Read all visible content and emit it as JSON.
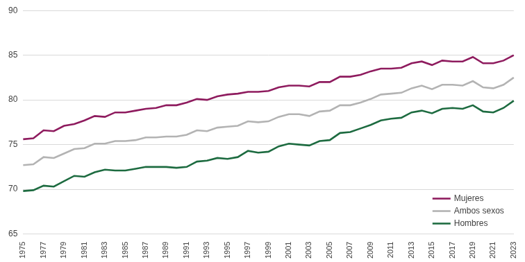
{
  "chart_data": {
    "type": "line",
    "categories": [
      "1975",
      null,
      "1977",
      null,
      "1979",
      null,
      "1981",
      null,
      "1983",
      null,
      "1985",
      null,
      "1987",
      null,
      "1989",
      null,
      "1991",
      null,
      "1993",
      null,
      "1995",
      null,
      "1997",
      null,
      "1999",
      null,
      "2001",
      null,
      "2003",
      null,
      "2005",
      null,
      "2007",
      null,
      "2009",
      null,
      "2011",
      null,
      "2013",
      null,
      "2015",
      null,
      "2017",
      null,
      "2019",
      null,
      "2021",
      null,
      "2023"
    ],
    "series": [
      {
        "name": "Mujeres",
        "color": "#8e1b5e",
        "values": [
          75.6,
          75.7,
          76.6,
          76.5,
          77.1,
          77.3,
          77.7,
          78.2,
          78.1,
          78.6,
          78.6,
          78.8,
          79.0,
          79.1,
          79.4,
          79.4,
          79.7,
          80.1,
          80.0,
          80.4,
          80.6,
          80.7,
          80.9,
          80.9,
          81.0,
          81.4,
          81.6,
          81.6,
          81.5,
          82.0,
          82.0,
          82.6,
          82.6,
          82.8,
          83.2,
          83.5,
          83.5,
          83.6,
          84.1,
          84.3,
          83.9,
          84.4,
          84.3,
          84.3,
          84.8,
          84.1,
          84.1,
          84.4,
          85.0
        ]
      },
      {
        "name": "Ambos sexos",
        "color": "#b3b3b3",
        "values": [
          72.7,
          72.8,
          73.6,
          73.5,
          74.0,
          74.5,
          74.6,
          75.1,
          75.1,
          75.4,
          75.4,
          75.5,
          75.8,
          75.8,
          75.9,
          75.9,
          76.1,
          76.6,
          76.5,
          76.9,
          77.0,
          77.1,
          77.6,
          77.5,
          77.6,
          78.1,
          78.4,
          78.4,
          78.2,
          78.7,
          78.8,
          79.4,
          79.4,
          79.7,
          80.1,
          80.6,
          80.7,
          80.8,
          81.3,
          81.6,
          81.2,
          81.7,
          81.7,
          81.6,
          82.1,
          81.4,
          81.3,
          81.7,
          82.5
        ]
      },
      {
        "name": "Hombres",
        "color": "#1d6b40",
        "values": [
          69.8,
          69.9,
          70.4,
          70.3,
          70.9,
          71.5,
          71.4,
          71.9,
          72.2,
          72.1,
          72.1,
          72.3,
          72.5,
          72.5,
          72.5,
          72.4,
          72.5,
          73.1,
          73.2,
          73.5,
          73.4,
          73.6,
          74.3,
          74.1,
          74.2,
          74.8,
          75.1,
          75.0,
          74.9,
          75.4,
          75.5,
          76.3,
          76.4,
          76.8,
          77.2,
          77.7,
          77.9,
          78.0,
          78.6,
          78.8,
          78.5,
          79.0,
          79.1,
          79.0,
          79.4,
          78.7,
          78.6,
          79.1,
          79.9
        ]
      }
    ],
    "ylim": [
      65,
      90
    ],
    "yticks": [
      65,
      70,
      75,
      80,
      85,
      90
    ],
    "grid": true,
    "legend": "lower right"
  }
}
